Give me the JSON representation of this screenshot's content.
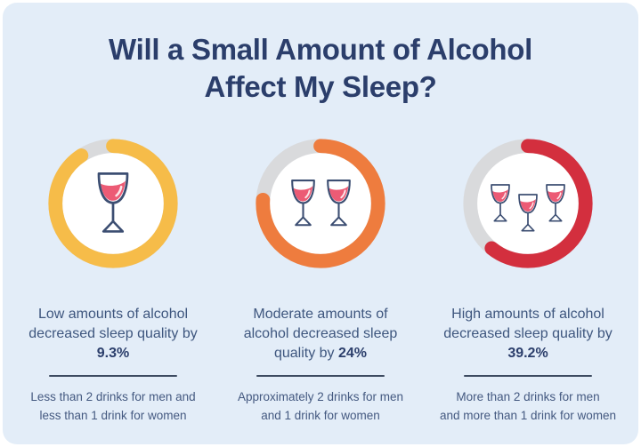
{
  "title": "Will a Small Amount of Alcohol Affect My Sleep?",
  "title_lines": [
    "Will a Small Amount of Alcohol",
    "Affect My Sleep?"
  ],
  "colors": {
    "page_bg": "#ffffff",
    "card_bg": "#e3edf8",
    "navy": "#2b3e6b",
    "body_text": "#3e567e",
    "note_text": "#445980",
    "divider": "#3d4b61",
    "wine": "#ec5b75",
    "glass_outline": "#3c4e72"
  },
  "chart_data": [
    {
      "type": "pie",
      "subtype": "donut-gauge",
      "category": "Low amounts of alcohol",
      "decrease_percent": 9.3,
      "percent_label": "9.3%",
      "values": [
        9.3,
        90.7
      ],
      "labels": [
        "sleep quality decrease",
        "remainder"
      ],
      "ring_color": "#f6bc49",
      "track_color": "#d9dadc",
      "glass_count": 1,
      "desc_prefix": "Low amounts of alcohol decreased sleep quality by",
      "desc_full": "Low amounts of alcohol decreased sleep quality by 9.3%",
      "note": "Less than 2 drinks for men and less than 1 drink for women",
      "note_lines": [
        "Less than 2 drinks for men and",
        "less than 1 drink for women"
      ]
    },
    {
      "type": "pie",
      "subtype": "donut-gauge",
      "category": "Moderate amounts of alcohol",
      "decrease_percent": 24,
      "percent_label": "24%",
      "values": [
        24,
        76
      ],
      "labels": [
        "sleep quality decrease",
        "remainder"
      ],
      "ring_color": "#ee7c3e",
      "track_color": "#d9dadc",
      "glass_count": 2,
      "desc_prefix": "Moderate amounts of alcohol decreased sleep quality by",
      "desc_full": "Moderate amounts of alcohol decreased sleep quality by 24%",
      "note": "Approximately 2 drinks for men and 1 drink for women",
      "note_lines": [
        "Approximately 2 drinks for men",
        "and 1 drink for women"
      ]
    },
    {
      "type": "pie",
      "subtype": "donut-gauge",
      "category": "High amounts of alcohol",
      "decrease_percent": 39.2,
      "percent_label": "39.2%",
      "values": [
        39.2,
        60.8
      ],
      "labels": [
        "sleep quality decrease",
        "remainder"
      ],
      "ring_color": "#d32f3e",
      "track_color": "#d9dadc",
      "glass_count": 3,
      "desc_prefix": "High amounts of alcohol decreased sleep quality by",
      "desc_full": "High amounts of alcohol decreased sleep quality by 39.2%",
      "note": "More than 2 drinks for men and more than 1 drink for women",
      "note_lines": [
        "More than 2 drinks for men",
        "and more than 1 drink for women"
      ]
    }
  ]
}
